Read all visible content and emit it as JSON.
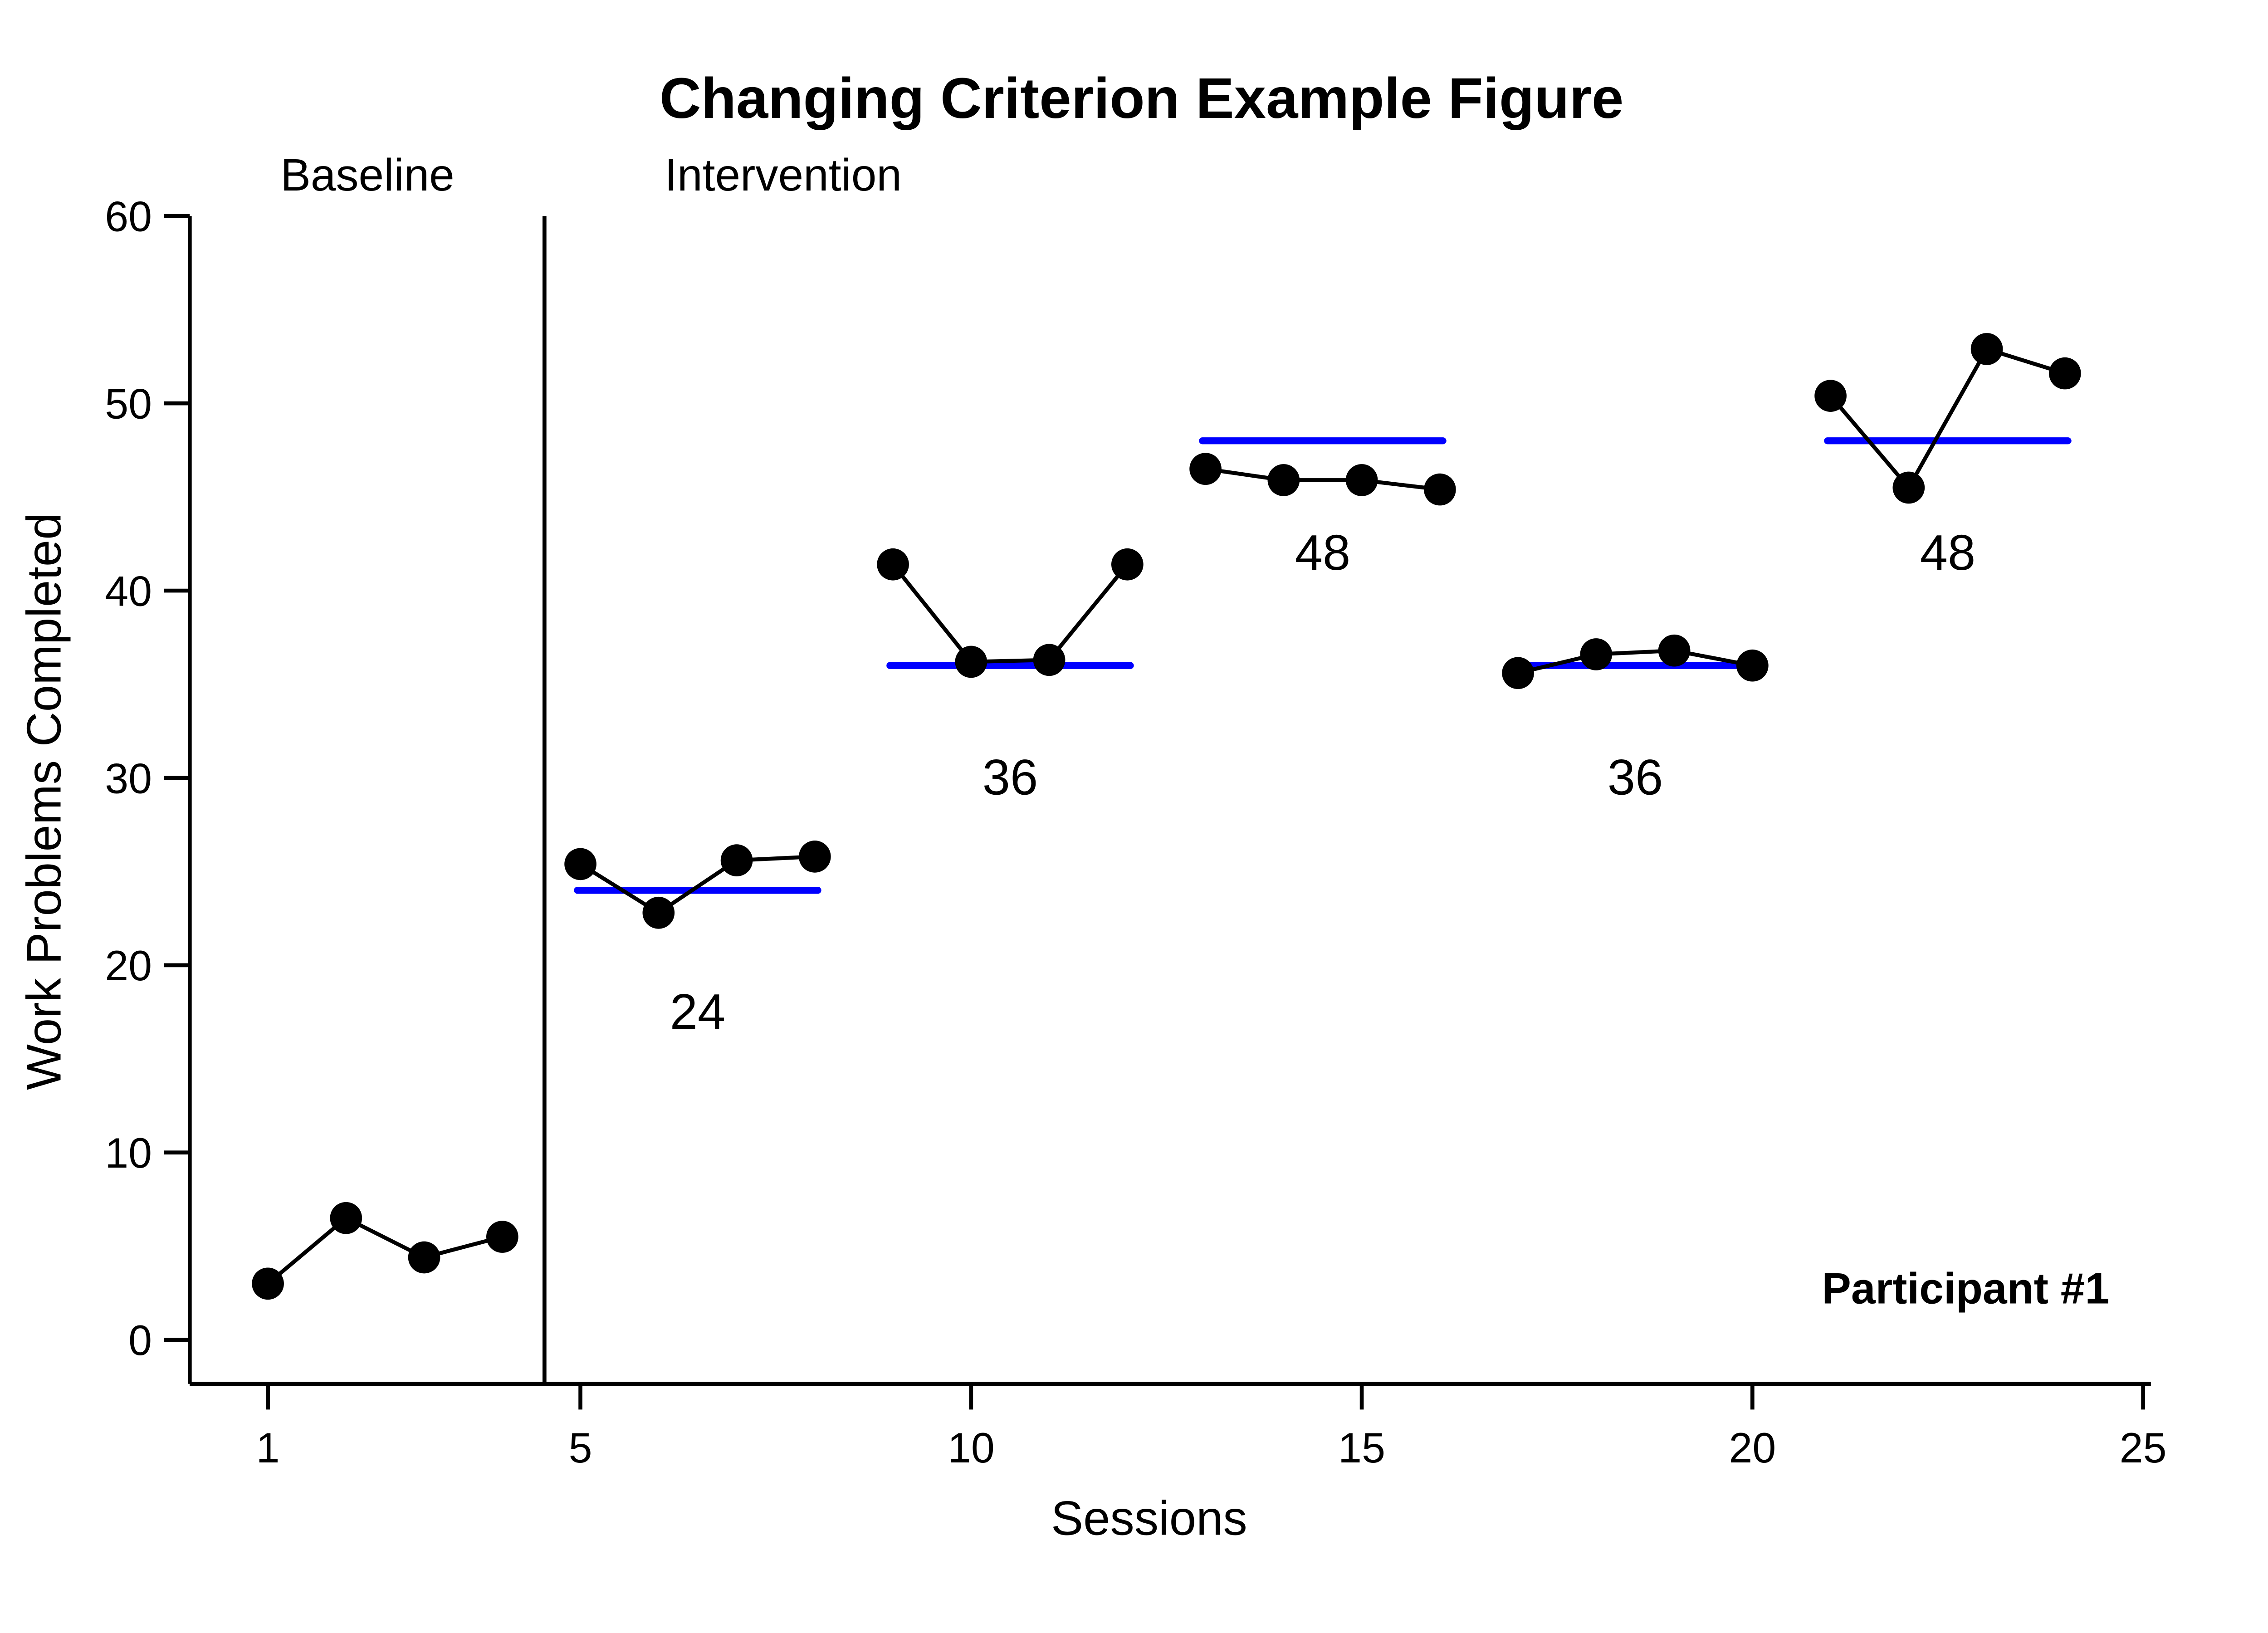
{
  "title": "Changing Criterion Example Figure",
  "phase_labels": {
    "baseline": "Baseline",
    "intervention": "Intervention"
  },
  "annotation": {
    "participant": "Participant #1"
  },
  "colors": {
    "criterion": "#0000ff",
    "data": "#000000",
    "background": "#ffffff",
    "axis": "#000000"
  },
  "chart_data": {
    "type": "line",
    "title": "Changing Criterion Example Figure",
    "xlabel": "Sessions",
    "ylabel": "Work Problems Completed",
    "xlim": [
      0,
      25.1
    ],
    "ylim": [
      -2.35,
      60
    ],
    "x_ticks": [
      1,
      5,
      10,
      15,
      20,
      25
    ],
    "y_ticks": [
      0,
      10,
      20,
      30,
      40,
      50,
      60
    ],
    "grid": false,
    "legend": false,
    "phase_change_x": 4.54,
    "series": [
      {
        "name": "Work problems completed",
        "x": [
          1,
          2,
          3,
          4,
          5,
          6,
          7,
          8,
          9,
          10,
          11,
          12,
          13,
          14,
          15,
          16,
          17,
          18,
          19,
          20,
          21,
          22,
          23,
          24
        ],
        "values": [
          3.0,
          6.5,
          4.4,
          5.5,
          25.4,
          22.8,
          25.6,
          25.8,
          41.4,
          36.2,
          36.3,
          41.4,
          46.5,
          45.9,
          45.9,
          45.4,
          35.6,
          36.6,
          36.8,
          36.0,
          50.4,
          45.5,
          52.9,
          51.6
        ]
      }
    ],
    "connected_runs": [
      [
        1,
        4
      ],
      [
        5,
        8
      ],
      [
        9,
        12
      ],
      [
        13,
        16
      ],
      [
        17,
        20
      ],
      [
        21,
        24
      ]
    ],
    "criterion_segments": [
      {
        "label": "24",
        "value": 24,
        "x_start": 5,
        "x_end": 8,
        "label_x": 6.5,
        "label_y": 17.5
      },
      {
        "label": "36",
        "value": 36,
        "x_start": 9,
        "x_end": 12,
        "label_x": 10.5,
        "label_y": 30
      },
      {
        "label": "48",
        "value": 48,
        "x_start": 13,
        "x_end": 16,
        "label_x": 14.5,
        "label_y": 42
      },
      {
        "label": "36",
        "value": 36,
        "x_start": 17,
        "x_end": 20,
        "label_x": 18.5,
        "label_y": 30
      },
      {
        "label": "48",
        "value": 48,
        "x_start": 21,
        "x_end": 24,
        "label_x": 22.5,
        "label_y": 42
      }
    ]
  }
}
